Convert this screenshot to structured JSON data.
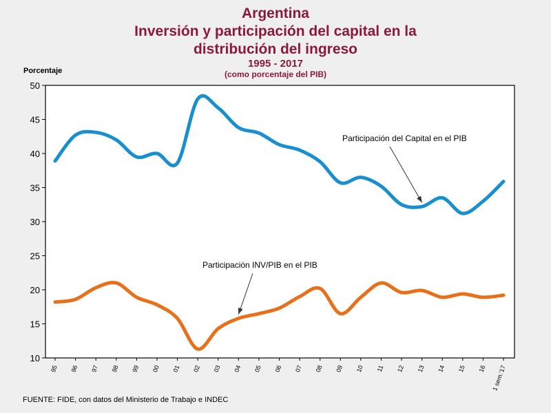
{
  "title_line1": "Argentina",
  "title_line2": "Inversión y participación del capital en la",
  "title_line3": "distribución del ingreso",
  "years": "1995 - 2017",
  "subtitle": "(como porcentaje del PIB)",
  "ylabel": "Porcentaje",
  "source": "FUENTE: FIDE, con datos del Ministerio de Trabajo e INDEC",
  "colors": {
    "capital": "#1a8fd0",
    "inversion": "#e8701a"
  },
  "chart_data": {
    "type": "line",
    "title": "Argentina Inversión y participación del capital en la distribución del ingreso 1995 - 2017 (como porcentaje del PIB)",
    "ylabel": "Porcentaje",
    "xlabel": "",
    "ylim": [
      10,
      50
    ],
    "yticks": [
      10,
      15,
      20,
      25,
      30,
      35,
      40,
      45,
      50
    ],
    "categories": [
      "95",
      "96",
      "97",
      "98",
      "99",
      "00",
      "01",
      "02",
      "03",
      "04",
      "05",
      "06",
      "07",
      "08",
      "09",
      "10",
      "11",
      "12",
      "13",
      "14",
      "15",
      "16",
      "1 sem.'17"
    ],
    "grid": false,
    "series": [
      {
        "name": "Participación del Capital en el PIB",
        "values": [
          38.9,
          42.7,
          43.1,
          42.0,
          39.5,
          40.0,
          38.6,
          48.0,
          46.7,
          43.8,
          43.0,
          41.3,
          40.5,
          38.8,
          35.7,
          36.5,
          35.2,
          32.5,
          32.2,
          33.5,
          31.2,
          33.0,
          35.9
        ]
      },
      {
        "name": "Participación INV/PIB en el PIB",
        "values": [
          18.2,
          18.6,
          20.3,
          21.0,
          18.9,
          17.8,
          15.8,
          11.3,
          14.3,
          15.8,
          16.5,
          17.3,
          19.0,
          20.2,
          16.5,
          18.9,
          21.0,
          19.6,
          19.9,
          18.9,
          19.4,
          18.9,
          19.2
        ]
      }
    ],
    "annotations": [
      {
        "text": "Participación del Capital en el PIB",
        "series": 0,
        "point": 18
      },
      {
        "text": "Participación INV/PIB en el PIB",
        "series": 1,
        "point": 9
      }
    ]
  }
}
